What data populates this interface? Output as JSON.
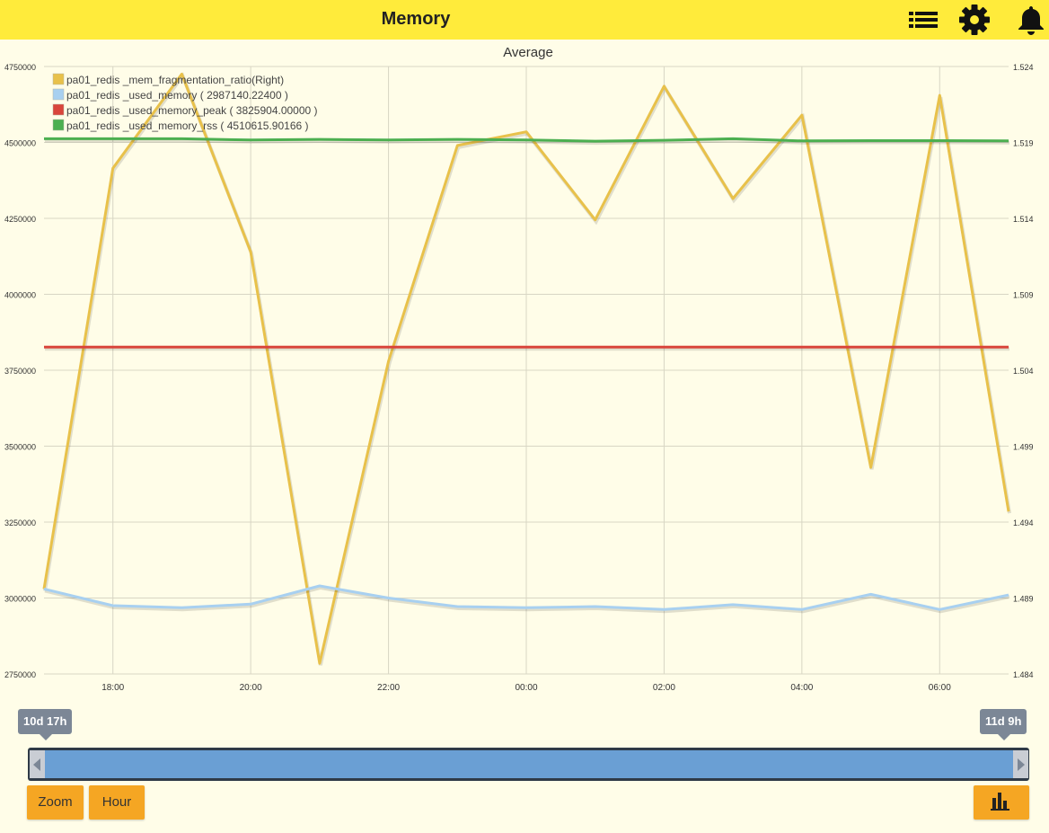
{
  "header": {
    "title": "Memory",
    "icons": [
      "list-icon",
      "gear-icon",
      "bell-icon"
    ],
    "bar_color": "#ffeb3b"
  },
  "chart_data": {
    "type": "line",
    "title": "Average",
    "x": [
      "17:00",
      "18:00",
      "19:00",
      "20:00",
      "21:00",
      "22:00",
      "23:00",
      "00:00",
      "01:00",
      "02:00",
      "03:00",
      "04:00",
      "05:00",
      "06:00",
      "07:00"
    ],
    "x_tick_labels": [
      "18:00",
      "20:00",
      "22:00",
      "00:00",
      "02:00",
      "04:00",
      "06:00"
    ],
    "y_left": {
      "ylim": [
        2750000,
        4750000
      ],
      "ticks": [
        "2750000",
        "3000000",
        "3250000",
        "3500000",
        "3750000",
        "4000000",
        "4250000",
        "4500000",
        "4750000"
      ]
    },
    "y_right": {
      "ylim": [
        1.484,
        1.524
      ],
      "ticks": [
        "1.484",
        "1.489",
        "1.494",
        "1.499",
        "1.504",
        "1.509",
        "1.514",
        "1.519",
        "1.524"
      ]
    },
    "legend_position": "top-left",
    "grid": true,
    "series": [
      {
        "name": "pa01_redis _mem_fragmentation_ratio(Right)",
        "axis": "right",
        "color": "#e8c14a",
        "values": [
          1.4896,
          1.5173,
          1.5235,
          1.5118,
          1.4847,
          1.5046,
          1.5188,
          1.5197,
          1.5139,
          1.5227,
          1.5153,
          1.5208,
          1.4976,
          1.5221,
          1.4947
        ]
      },
      {
        "name": "pa01_redis _used_memory ( 2987140.22400 )",
        "axis": "left",
        "color": "#a8d0f0",
        "values": [
          3030000,
          2975000,
          2968000,
          2980000,
          3040000,
          3000000,
          2972000,
          2968000,
          2972000,
          2962000,
          2978000,
          2962000,
          3012000,
          2962000,
          3010000
        ]
      },
      {
        "name": "pa01_redis _used_memory_peak ( 3825904.00000 )",
        "axis": "left",
        "color": "#d9453b",
        "values": [
          3825904,
          3825904,
          3825904,
          3825904,
          3825904,
          3825904,
          3825904,
          3825904,
          3825904,
          3825904,
          3825904,
          3825904,
          3825904,
          3825904,
          3825904
        ]
      },
      {
        "name": "pa01_redis _used_memory_rss ( 4510615.90166 )",
        "axis": "left",
        "color": "#4caf50",
        "values": [
          4512000,
          4512000,
          4512000,
          4508000,
          4510000,
          4508000,
          4510000,
          4508000,
          4504000,
          4507000,
          4512000,
          4505000,
          4506000,
          4506000,
          4505000
        ]
      }
    ]
  },
  "navigator": {
    "start_label": "10d 17h",
    "end_label": "11d 9h",
    "fill_color": "#6a9fd4"
  },
  "buttons": {
    "zoom": "Zoom",
    "hour": "Hour",
    "chart_icon": "bar-chart-icon",
    "color": "#f5a623"
  }
}
